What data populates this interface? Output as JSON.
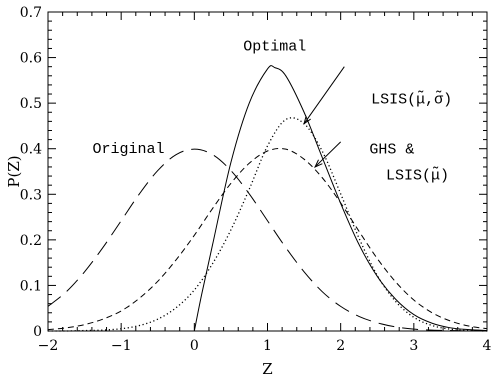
{
  "chart_data": {
    "type": "line",
    "title": "",
    "xlabel": "Z",
    "ylabel": "P(Z)",
    "xlim": [
      -2,
      4
    ],
    "ylim": [
      0,
      0.7
    ],
    "xticks": [
      -2,
      -1,
      0,
      1,
      2,
      3,
      4
    ],
    "xtick_labels": [
      "−2",
      "−1",
      "0",
      "1",
      "2",
      "3",
      "4"
    ],
    "yticks": [
      0,
      0.1,
      0.2,
      0.3,
      0.4,
      0.5,
      0.6,
      0.7
    ],
    "ytick_labels": [
      "0",
      "0.1",
      "0.2",
      "0.3",
      "0.4",
      "0.5",
      "0.6",
      "0.7"
    ],
    "grid": false,
    "legend": "none",
    "series": [
      {
        "style": "long-dash",
        "x": [
          -2,
          -1.75,
          -1.5,
          -1.25,
          -1,
          -0.75,
          -0.5,
          -0.25,
          0,
          0.25,
          0.5,
          0.75,
          1,
          1.25,
          1.5,
          1.75,
          2,
          2.25,
          2.5,
          2.75,
          3,
          3.25,
          3.5,
          3.75,
          4
        ],
        "y": [
          0.054,
          0.086,
          0.13,
          0.183,
          0.242,
          0.301,
          0.352,
          0.387,
          0.399,
          0.387,
          0.352,
          0.301,
          0.242,
          0.183,
          0.13,
          0.086,
          0.054,
          0.032,
          0.018,
          0.009,
          0.004,
          0.002,
          0.001,
          0.0,
          0.0
        ]
      },
      {
        "style": "dotted",
        "x": [
          -2,
          -1.75,
          -1.5,
          -1.25,
          -1,
          -0.75,
          -0.5,
          -0.25,
          0,
          0.25,
          0.5,
          0.75,
          1,
          1.25,
          1.5,
          1.75,
          2,
          2.25,
          2.5,
          2.75,
          3,
          3.25,
          3.5,
          3.75,
          4
        ],
        "y": [
          0.0,
          0.0,
          0.001,
          0.002,
          0.005,
          0.012,
          0.026,
          0.051,
          0.09,
          0.148,
          0.222,
          0.311,
          0.406,
          0.464,
          0.455,
          0.394,
          0.301,
          0.204,
          0.122,
          0.065,
          0.03,
          0.012,
          0.004,
          0.001,
          0.0
        ]
      },
      {
        "style": "short-dash",
        "x": [
          -2,
          -1.75,
          -1.5,
          -1.25,
          -1,
          -0.75,
          -0.5,
          -0.25,
          0,
          0.25,
          0.5,
          0.75,
          1,
          1.25,
          1.5,
          1.75,
          2,
          2.25,
          2.5,
          2.75,
          3,
          3.25,
          3.5,
          3.75,
          4
        ],
        "y": [
          0.003,
          0.007,
          0.014,
          0.026,
          0.044,
          0.072,
          0.109,
          0.156,
          0.21,
          0.269,
          0.324,
          0.368,
          0.395,
          0.399,
          0.377,
          0.336,
          0.281,
          0.219,
          0.159,
          0.108,
          0.068,
          0.04,
          0.022,
          0.011,
          0.005
        ]
      },
      {
        "style": "solid",
        "x": [
          0,
          0.1,
          0.25,
          0.5,
          0.75,
          1,
          1.1,
          1.25,
          1.5,
          1.75,
          2,
          2.25,
          2.5,
          2.75,
          3,
          3.25,
          3.5,
          3.75,
          4
        ],
        "y": [
          0.0,
          0.08,
          0.19,
          0.37,
          0.5,
          0.575,
          0.578,
          0.56,
          0.48,
          0.38,
          0.28,
          0.19,
          0.12,
          0.07,
          0.036,
          0.017,
          0.007,
          0.003,
          0.001
        ]
      }
    ],
    "annotations": [
      {
        "text": "Optimal",
        "x": 1.1,
        "y": 0.627
      },
      {
        "text": "Original",
        "x": -0.9,
        "y": 0.402
      },
      {
        "text": "LSIS(μ̃,σ̃)",
        "x": 2.97,
        "y": 0.51
      },
      {
        "text": "GHS &",
        "x": 2.7,
        "y": 0.4
      },
      {
        "text": "LSIS(μ̃)",
        "x": 3.05,
        "y": 0.343
      }
    ],
    "arrows": [
      {
        "from": [
          2.05,
          0.58
        ],
        "to": [
          1.5,
          0.455
        ]
      },
      {
        "from": [
          2.0,
          0.415
        ],
        "to": [
          1.65,
          0.36
        ]
      }
    ]
  }
}
